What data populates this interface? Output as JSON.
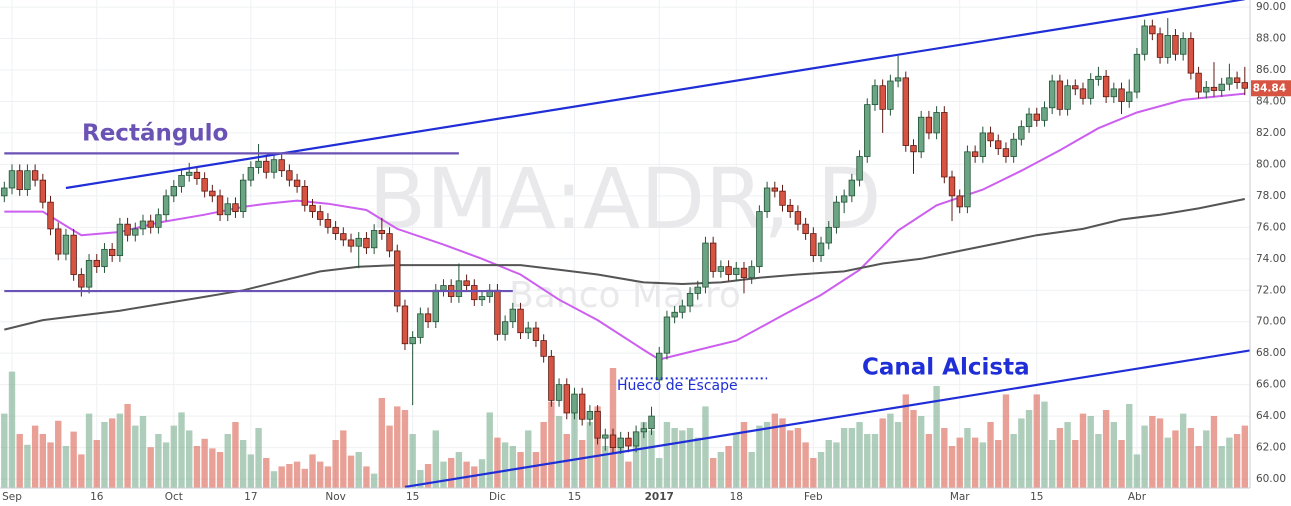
{
  "chart_data": {
    "type": "candlestick",
    "watermark": "BMA:ADR, D",
    "watermark_subtitle": "Banco Macro",
    "annotations": {
      "rect": "Rectángulo",
      "channel": "Canal Alcista",
      "gap": "Hueco de Escape"
    },
    "ylim": [
      59.43,
      90.45
    ],
    "yticks": [
      {
        "value": 60,
        "label": "60.00"
      },
      {
        "value": 62,
        "label": "62.00"
      },
      {
        "value": 64,
        "label": "64.00"
      },
      {
        "value": 66,
        "label": "66.00"
      },
      {
        "value": 68,
        "label": "68.00"
      },
      {
        "value": 70,
        "label": "70.00"
      },
      {
        "value": 72,
        "label": "72.00"
      },
      {
        "value": 74,
        "label": "74.00"
      },
      {
        "value": 76,
        "label": "76.00"
      },
      {
        "value": 78,
        "label": "78.00"
      },
      {
        "value": 80,
        "label": "80.00"
      },
      {
        "value": 82,
        "label": "82.00"
      },
      {
        "value": 84,
        "label": "84.00"
      },
      {
        "value": 86,
        "label": "86.00"
      },
      {
        "value": 88,
        "label": "88.00"
      },
      {
        "value": 90,
        "label": "90.00"
      }
    ],
    "xticks": [
      {
        "value": 1,
        "label": "Sep"
      },
      {
        "value": 12,
        "label": "16"
      },
      {
        "value": 22,
        "label": "Oct"
      },
      {
        "value": 32,
        "label": "17"
      },
      {
        "value": 43,
        "label": "Nov"
      },
      {
        "value": 53,
        "label": "15"
      },
      {
        "value": 64,
        "label": "Dic"
      },
      {
        "value": 74,
        "label": "15"
      },
      {
        "value": 85,
        "label": "2017"
      },
      {
        "value": 95,
        "label": "18"
      },
      {
        "value": 105,
        "label": "Feb"
      },
      {
        "value": 124,
        "label": "Mar"
      },
      {
        "value": 134,
        "label": "15"
      },
      {
        "value": 147,
        "label": "Abr"
      }
    ],
    "grid": true,
    "up_color": "#6ba583",
    "down_color": "#d75442",
    "ohlc": [
      [
        78.0,
        78.9,
        77.6,
        78.5
      ],
      [
        78.5,
        80.0,
        78.1,
        79.6
      ],
      [
        79.6,
        80.0,
        78.0,
        78.4
      ],
      [
        78.4,
        80.0,
        78.0,
        79.6
      ],
      [
        79.6,
        80.0,
        78.6,
        79.0
      ],
      [
        79.0,
        79.4,
        77.2,
        77.6
      ],
      [
        77.6,
        78.0,
        75.5,
        75.9
      ],
      [
        75.9,
        76.3,
        73.9,
        74.3
      ],
      [
        74.3,
        75.9,
        73.9,
        75.5
      ],
      [
        75.5,
        75.9,
        72.6,
        73.0
      ],
      [
        73.0,
        73.4,
        71.6,
        72.2
      ],
      [
        72.2,
        74.3,
        71.8,
        73.9
      ],
      [
        73.9,
        74.3,
        73.1,
        73.5
      ],
      [
        73.5,
        75.0,
        73.1,
        74.6
      ],
      [
        74.6,
        75.0,
        73.8,
        74.2
      ],
      [
        74.2,
        76.6,
        73.8,
        76.2
      ],
      [
        76.2,
        76.6,
        75.1,
        75.5
      ],
      [
        75.5,
        76.3,
        75.1,
        75.9
      ],
      [
        75.9,
        76.8,
        75.5,
        76.4
      ],
      [
        76.4,
        76.8,
        75.6,
        76.0
      ],
      [
        76.0,
        77.2,
        75.6,
        76.8
      ],
      [
        76.8,
        78.4,
        76.4,
        78.0
      ],
      [
        78.0,
        79.0,
        77.6,
        78.6
      ],
      [
        78.6,
        79.7,
        78.2,
        79.3
      ],
      [
        79.3,
        80.1,
        78.9,
        79.5
      ],
      [
        79.5,
        79.9,
        78.7,
        79.1
      ],
      [
        79.1,
        79.5,
        77.9,
        78.3
      ],
      [
        78.3,
        78.7,
        77.6,
        78.0
      ],
      [
        78.0,
        78.4,
        76.4,
        76.8
      ],
      [
        76.8,
        77.9,
        76.4,
        77.5
      ],
      [
        77.5,
        77.9,
        76.6,
        77.0
      ],
      [
        77.0,
        79.4,
        76.6,
        79.0
      ],
      [
        79.0,
        80.2,
        78.6,
        79.8
      ],
      [
        79.8,
        81.3,
        79.4,
        80.2
      ],
      [
        80.2,
        80.6,
        79.1,
        79.5
      ],
      [
        79.5,
        80.7,
        79.1,
        80.3
      ],
      [
        80.3,
        80.7,
        79.2,
        79.6
      ],
      [
        79.6,
        80.0,
        78.6,
        79.0
      ],
      [
        79.0,
        79.4,
        78.2,
        78.6
      ],
      [
        78.6,
        79.0,
        77.0,
        77.4
      ],
      [
        77.4,
        77.8,
        76.6,
        77.0
      ],
      [
        77.0,
        77.4,
        76.1,
        76.5
      ],
      [
        76.5,
        76.9,
        75.6,
        76.0
      ],
      [
        76.0,
        76.4,
        75.2,
        75.6
      ],
      [
        75.6,
        76.0,
        74.8,
        75.2
      ],
      [
        75.2,
        75.6,
        74.4,
        74.8
      ],
      [
        74.8,
        75.7,
        73.4,
        75.3
      ],
      [
        75.3,
        75.7,
        74.3,
        74.7
      ],
      [
        74.7,
        76.2,
        74.3,
        75.8
      ],
      [
        75.8,
        76.6,
        75.2,
        75.6
      ],
      [
        75.6,
        76.0,
        74.1,
        74.5
      ],
      [
        74.5,
        74.9,
        70.6,
        71.0
      ],
      [
        71.0,
        71.4,
        68.2,
        68.6
      ],
      [
        68.6,
        69.4,
        64.7,
        69.0
      ],
      [
        69.0,
        70.9,
        68.6,
        70.5
      ],
      [
        70.5,
        70.9,
        69.6,
        70.0
      ],
      [
        70.0,
        72.4,
        69.6,
        72.0
      ],
      [
        72.0,
        72.7,
        71.6,
        72.3
      ],
      [
        72.3,
        72.7,
        71.2,
        71.6
      ],
      [
        71.6,
        73.7,
        71.2,
        72.6
      ],
      [
        72.6,
        73.0,
        71.9,
        72.3
      ],
      [
        72.3,
        72.7,
        71.0,
        71.4
      ],
      [
        71.4,
        72.0,
        71.0,
        71.6
      ],
      [
        71.6,
        72.4,
        71.2,
        72.0
      ],
      [
        72.0,
        72.4,
        68.8,
        69.2
      ],
      [
        69.2,
        70.4,
        68.8,
        70.0
      ],
      [
        70.0,
        71.2,
        69.6,
        70.8
      ],
      [
        70.8,
        71.2,
        68.9,
        69.3
      ],
      [
        69.3,
        70.0,
        68.9,
        69.6
      ],
      [
        69.6,
        70.0,
        68.4,
        68.8
      ],
      [
        68.8,
        69.2,
        67.4,
        67.8
      ],
      [
        67.8,
        68.2,
        64.6,
        65.0
      ],
      [
        65.0,
        66.4,
        64.6,
        66.0
      ],
      [
        66.0,
        66.4,
        63.8,
        64.2
      ],
      [
        64.2,
        65.8,
        63.8,
        65.4
      ],
      [
        65.4,
        65.8,
        63.4,
        63.8
      ],
      [
        63.8,
        64.7,
        63.4,
        64.3
      ],
      [
        64.3,
        64.7,
        62.2,
        62.6
      ],
      [
        62.6,
        63.2,
        61.8,
        62.8
      ],
      [
        62.8,
        63.2,
        61.6,
        62.0
      ],
      [
        62.0,
        63.0,
        61.6,
        62.6
      ],
      [
        62.6,
        63.0,
        61.7,
        62.1
      ],
      [
        62.1,
        63.4,
        61.7,
        63.0
      ],
      [
        63.0,
        63.6,
        62.6,
        63.2
      ],
      [
        63.2,
        64.6,
        62.8,
        64.0
      ],
      [
        66.3,
        68.4,
        66.0,
        68.0
      ],
      [
        68.0,
        70.7,
        67.6,
        70.3
      ],
      [
        70.3,
        71.0,
        69.9,
        70.6
      ],
      [
        70.6,
        71.4,
        70.2,
        71.0
      ],
      [
        71.0,
        72.2,
        70.6,
        71.8
      ],
      [
        71.8,
        72.6,
        71.4,
        72.2
      ],
      [
        72.2,
        75.4,
        71.8,
        75.0
      ],
      [
        75.0,
        75.4,
        72.8,
        73.2
      ],
      [
        73.2,
        73.9,
        72.8,
        73.5
      ],
      [
        73.5,
        73.9,
        72.6,
        73.0
      ],
      [
        73.0,
        73.8,
        72.6,
        73.4
      ],
      [
        73.4,
        73.8,
        71.8,
        72.8
      ],
      [
        72.8,
        73.9,
        72.4,
        73.5
      ],
      [
        73.5,
        77.4,
        73.1,
        77.0
      ],
      [
        77.0,
        78.9,
        76.6,
        78.5
      ],
      [
        78.5,
        78.9,
        77.9,
        78.3
      ],
      [
        78.3,
        78.7,
        77.0,
        77.4
      ],
      [
        77.4,
        77.8,
        76.6,
        77.0
      ],
      [
        77.0,
        77.4,
        75.8,
        76.2
      ],
      [
        76.2,
        76.6,
        75.2,
        75.6
      ],
      [
        75.6,
        76.0,
        73.8,
        74.2
      ],
      [
        74.2,
        75.4,
        73.8,
        75.0
      ],
      [
        75.0,
        76.4,
        74.6,
        76.0
      ],
      [
        76.0,
        78.0,
        75.6,
        77.6
      ],
      [
        77.6,
        78.4,
        76.9,
        78.0
      ],
      [
        78.0,
        79.4,
        77.6,
        79.0
      ],
      [
        79.0,
        80.9,
        78.6,
        80.5
      ],
      [
        80.5,
        84.2,
        80.1,
        83.8
      ],
      [
        83.8,
        85.4,
        83.4,
        85.0
      ],
      [
        85.0,
        85.4,
        82.0,
        83.5
      ],
      [
        83.5,
        85.7,
        83.1,
        85.3
      ],
      [
        85.3,
        86.9,
        84.9,
        85.5
      ],
      [
        85.5,
        85.9,
        80.8,
        81.2
      ],
      [
        81.2,
        81.6,
        79.4,
        80.8
      ],
      [
        80.8,
        83.4,
        80.4,
        83.0
      ],
      [
        83.0,
        83.4,
        81.6,
        82.0
      ],
      [
        82.0,
        83.7,
        81.6,
        83.3
      ],
      [
        83.3,
        83.7,
        78.8,
        79.2
      ],
      [
        79.2,
        79.6,
        76.4,
        78.0
      ],
      [
        78.0,
        78.4,
        76.9,
        77.3
      ],
      [
        77.3,
        81.2,
        76.9,
        80.8
      ],
      [
        80.8,
        81.2,
        80.1,
        80.5
      ],
      [
        80.5,
        82.4,
        80.1,
        82.0
      ],
      [
        82.0,
        82.4,
        81.1,
        81.5
      ],
      [
        81.5,
        81.9,
        80.6,
        81.0
      ],
      [
        81.0,
        81.4,
        80.1,
        80.5
      ],
      [
        80.5,
        82.0,
        80.1,
        81.6
      ],
      [
        81.6,
        82.8,
        81.2,
        82.4
      ],
      [
        82.4,
        83.6,
        82.0,
        83.2
      ],
      [
        83.2,
        83.6,
        82.4,
        82.8
      ],
      [
        82.8,
        84.0,
        82.4,
        83.6
      ],
      [
        83.6,
        85.7,
        83.2,
        85.3
      ],
      [
        85.3,
        85.7,
        83.1,
        83.5
      ],
      [
        83.5,
        85.4,
        83.1,
        85.0
      ],
      [
        85.0,
        85.4,
        84.4,
        84.8
      ],
      [
        84.8,
        85.2,
        83.8,
        84.2
      ],
      [
        84.2,
        85.8,
        83.8,
        85.4
      ],
      [
        85.4,
        86.2,
        85.0,
        85.6
      ],
      [
        85.6,
        86.0,
        83.9,
        84.3
      ],
      [
        84.3,
        85.2,
        83.9,
        84.8
      ],
      [
        84.8,
        85.2,
        83.2,
        84.0
      ],
      [
        84.0,
        85.4,
        83.6,
        84.6
      ],
      [
        84.6,
        87.4,
        84.2,
        87.0
      ],
      [
        87.0,
        89.2,
        86.6,
        88.8
      ],
      [
        88.8,
        89.2,
        87.9,
        88.3
      ],
      [
        88.3,
        88.7,
        86.4,
        86.8
      ],
      [
        86.8,
        89.3,
        86.4,
        88.2
      ],
      [
        88.2,
        88.6,
        86.6,
        87.0
      ],
      [
        87.0,
        88.4,
        86.6,
        88.0
      ],
      [
        88.0,
        88.4,
        85.4,
        85.8
      ],
      [
        85.8,
        86.2,
        84.2,
        84.6
      ],
      [
        84.6,
        85.3,
        84.2,
        84.9
      ],
      [
        84.9,
        86.5,
        84.3,
        84.7
      ],
      [
        84.7,
        85.5,
        84.3,
        85.1
      ],
      [
        85.1,
        86.4,
        84.7,
        85.5
      ],
      [
        85.5,
        85.9,
        84.8,
        85.2
      ],
      [
        85.2,
        86.2,
        84.4,
        84.84
      ]
    ],
    "volume_lim": [
      0,
      100
    ],
    "volume": [
      62,
      97,
      45,
      36,
      52,
      45,
      38,
      56,
      35,
      47,
      28,
      62,
      40,
      55,
      58,
      62,
      70,
      52,
      60,
      34,
      45,
      38,
      52,
      63,
      48,
      35,
      41,
      33,
      30,
      45,
      55,
      40,
      28,
      50,
      25,
      14,
      18,
      20,
      22,
      16,
      28,
      22,
      18,
      40,
      48,
      27,
      30,
      18,
      12,
      75,
      52,
      68,
      65,
      45,
      15,
      20,
      48,
      22,
      25,
      30,
      22,
      18,
      24,
      63,
      42,
      38,
      35,
      30,
      48,
      30,
      55,
      72,
      60,
      45,
      65,
      40,
      55,
      68,
      35,
      100,
      42,
      22,
      40,
      55,
      48,
      25,
      55,
      50,
      48,
      50,
      42,
      68,
      25,
      30,
      35,
      45,
      55,
      30,
      52,
      55,
      62,
      58,
      48,
      50,
      38,
      25,
      30,
      40,
      38,
      50,
      50,
      55,
      45,
      45,
      58,
      62,
      55,
      78,
      65,
      60,
      45,
      85,
      50,
      35,
      42,
      50,
      42,
      38,
      55,
      40,
      78,
      45,
      58,
      65,
      78,
      72,
      40,
      50,
      55,
      40,
      62,
      60,
      45,
      65,
      55,
      40,
      70,
      28,
      52,
      60,
      58,
      42,
      48,
      62,
      50,
      35,
      48,
      60,
      35,
      42,
      45,
      52
    ],
    "moving_averages": [
      {
        "color": "#cc5ef0",
        "x": [
          0,
          5,
          10,
          15,
          20,
          26,
          31,
          34,
          38,
          42,
          47,
          51,
          57,
          62,
          67,
          72,
          77,
          83,
          85,
          90,
          95,
          101,
          106,
          111,
          116,
          121,
          127,
          132,
          137,
          142,
          147,
          153,
          161
        ],
        "values": [
          77.0,
          77.0,
          75.5,
          75.7,
          76.3,
          76.8,
          77.3,
          77.5,
          77.7,
          77.5,
          77.1,
          75.9,
          74.9,
          74.0,
          73.0,
          71.4,
          70.1,
          68.2,
          67.6,
          68.2,
          68.8,
          70.4,
          71.7,
          73.3,
          75.8,
          77.4,
          78.4,
          79.6,
          80.9,
          82.3,
          83.3,
          84.1,
          84.5
        ]
      },
      {
        "color": "#555555",
        "x": [
          0,
          5,
          10,
          15,
          20,
          25,
          31,
          36,
          41,
          46,
          51,
          57,
          62,
          67,
          72,
          77,
          83,
          88,
          93,
          98,
          103,
          109,
          114,
          119,
          124,
          129,
          134,
          140,
          145,
          150,
          155,
          161
        ],
        "values": [
          69.5,
          70.1,
          70.4,
          70.7,
          71.1,
          71.5,
          72.0,
          72.6,
          73.2,
          73.5,
          73.6,
          73.6,
          73.6,
          73.6,
          73.3,
          73.0,
          72.5,
          72.4,
          72.5,
          72.8,
          73.0,
          73.2,
          73.7,
          74.0,
          74.5,
          75.0,
          75.5,
          75.9,
          76.5,
          76.8,
          77.2,
          77.8
        ]
      }
    ],
    "annotation_lines": [
      {
        "color": "#1f2ed6",
        "x": [
          8,
          161
        ],
        "y": [
          78.5,
          90.5
        ]
      },
      {
        "color": "#1f2ed6",
        "x": [
          52,
          162
        ],
        "y": [
          59.5,
          68.2
        ]
      },
      {
        "color": "#6b52b5",
        "x": [
          0,
          59
        ],
        "y": [
          80.7,
          80.7
        ]
      },
      {
        "color": "#6b52b5",
        "x": [
          0,
          66
        ],
        "y": [
          71.95,
          71.95
        ]
      },
      {
        "color": "#1f2ed6",
        "dashed": true,
        "x": [
          80,
          99
        ],
        "y": [
          66.4,
          66.4
        ]
      }
    ]
  }
}
